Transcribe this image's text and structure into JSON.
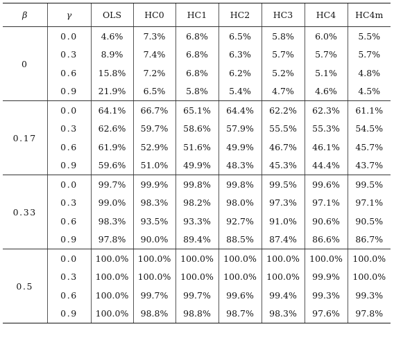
{
  "headers": {
    "beta": "β",
    "gamma": "γ",
    "cols": [
      "OLS",
      "HC0",
      "HC1",
      "HC2",
      "HC3",
      "HC4",
      "HC4m"
    ]
  },
  "groups": [
    {
      "beta": "0",
      "rows": [
        {
          "gamma": "0.0",
          "vals": [
            "4.6%",
            "7.3%",
            "6.8%",
            "6.5%",
            "5.8%",
            "6.0%",
            "5.5%"
          ]
        },
        {
          "gamma": "0.3",
          "vals": [
            "8.9%",
            "7.4%",
            "6.8%",
            "6.3%",
            "5.7%",
            "5.7%",
            "5.7%"
          ]
        },
        {
          "gamma": "0.6",
          "vals": [
            "15.8%",
            "7.2%",
            "6.8%",
            "6.2%",
            "5.2%",
            "5.1%",
            "4.8%"
          ]
        },
        {
          "gamma": "0.9",
          "vals": [
            "21.9%",
            "6.5%",
            "5.8%",
            "5.4%",
            "4.7%",
            "4.6%",
            "4.5%"
          ]
        }
      ]
    },
    {
      "beta": "0.17",
      "rows": [
        {
          "gamma": "0.0",
          "vals": [
            "64.1%",
            "66.7%",
            "65.1%",
            "64.4%",
            "62.2%",
            "62.3%",
            "61.1%"
          ]
        },
        {
          "gamma": "0.3",
          "vals": [
            "62.6%",
            "59.7%",
            "58.6%",
            "57.9%",
            "55.5%",
            "55.3%",
            "54.5%"
          ]
        },
        {
          "gamma": "0.6",
          "vals": [
            "61.9%",
            "52.9%",
            "51.6%",
            "49.9%",
            "46.7%",
            "46.1%",
            "45.7%"
          ]
        },
        {
          "gamma": "0.9",
          "vals": [
            "59.6%",
            "51.0%",
            "49.9%",
            "48.3%",
            "45.3%",
            "44.4%",
            "43.7%"
          ]
        }
      ]
    },
    {
      "beta": "0.33",
      "rows": [
        {
          "gamma": "0.0",
          "vals": [
            "99.7%",
            "99.9%",
            "99.8%",
            "99.8%",
            "99.5%",
            "99.6%",
            "99.5%"
          ]
        },
        {
          "gamma": "0.3",
          "vals": [
            "99.0%",
            "98.3%",
            "98.2%",
            "98.0%",
            "97.3%",
            "97.1%",
            "97.1%"
          ]
        },
        {
          "gamma": "0.6",
          "vals": [
            "98.3%",
            "93.5%",
            "93.3%",
            "92.7%",
            "91.0%",
            "90.6%",
            "90.5%"
          ]
        },
        {
          "gamma": "0.9",
          "vals": [
            "97.8%",
            "90.0%",
            "89.4%",
            "88.5%",
            "87.4%",
            "86.6%",
            "86.7%"
          ]
        }
      ]
    },
    {
      "beta": "0.5",
      "rows": [
        {
          "gamma": "0.0",
          "vals": [
            "100.0%",
            "100.0%",
            "100.0%",
            "100.0%",
            "100.0%",
            "100.0%",
            "100.0%"
          ]
        },
        {
          "gamma": "0.3",
          "vals": [
            "100.0%",
            "100.0%",
            "100.0%",
            "100.0%",
            "100.0%",
            "99.9%",
            "100.0%"
          ]
        },
        {
          "gamma": "0.6",
          "vals": [
            "100.0%",
            "99.7%",
            "99.7%",
            "99.6%",
            "99.4%",
            "99.3%",
            "99.3%"
          ]
        },
        {
          "gamma": "0.9",
          "vals": [
            "100.0%",
            "98.8%",
            "98.8%",
            "98.7%",
            "98.3%",
            "97.6%",
            "97.8%"
          ]
        }
      ]
    }
  ]
}
